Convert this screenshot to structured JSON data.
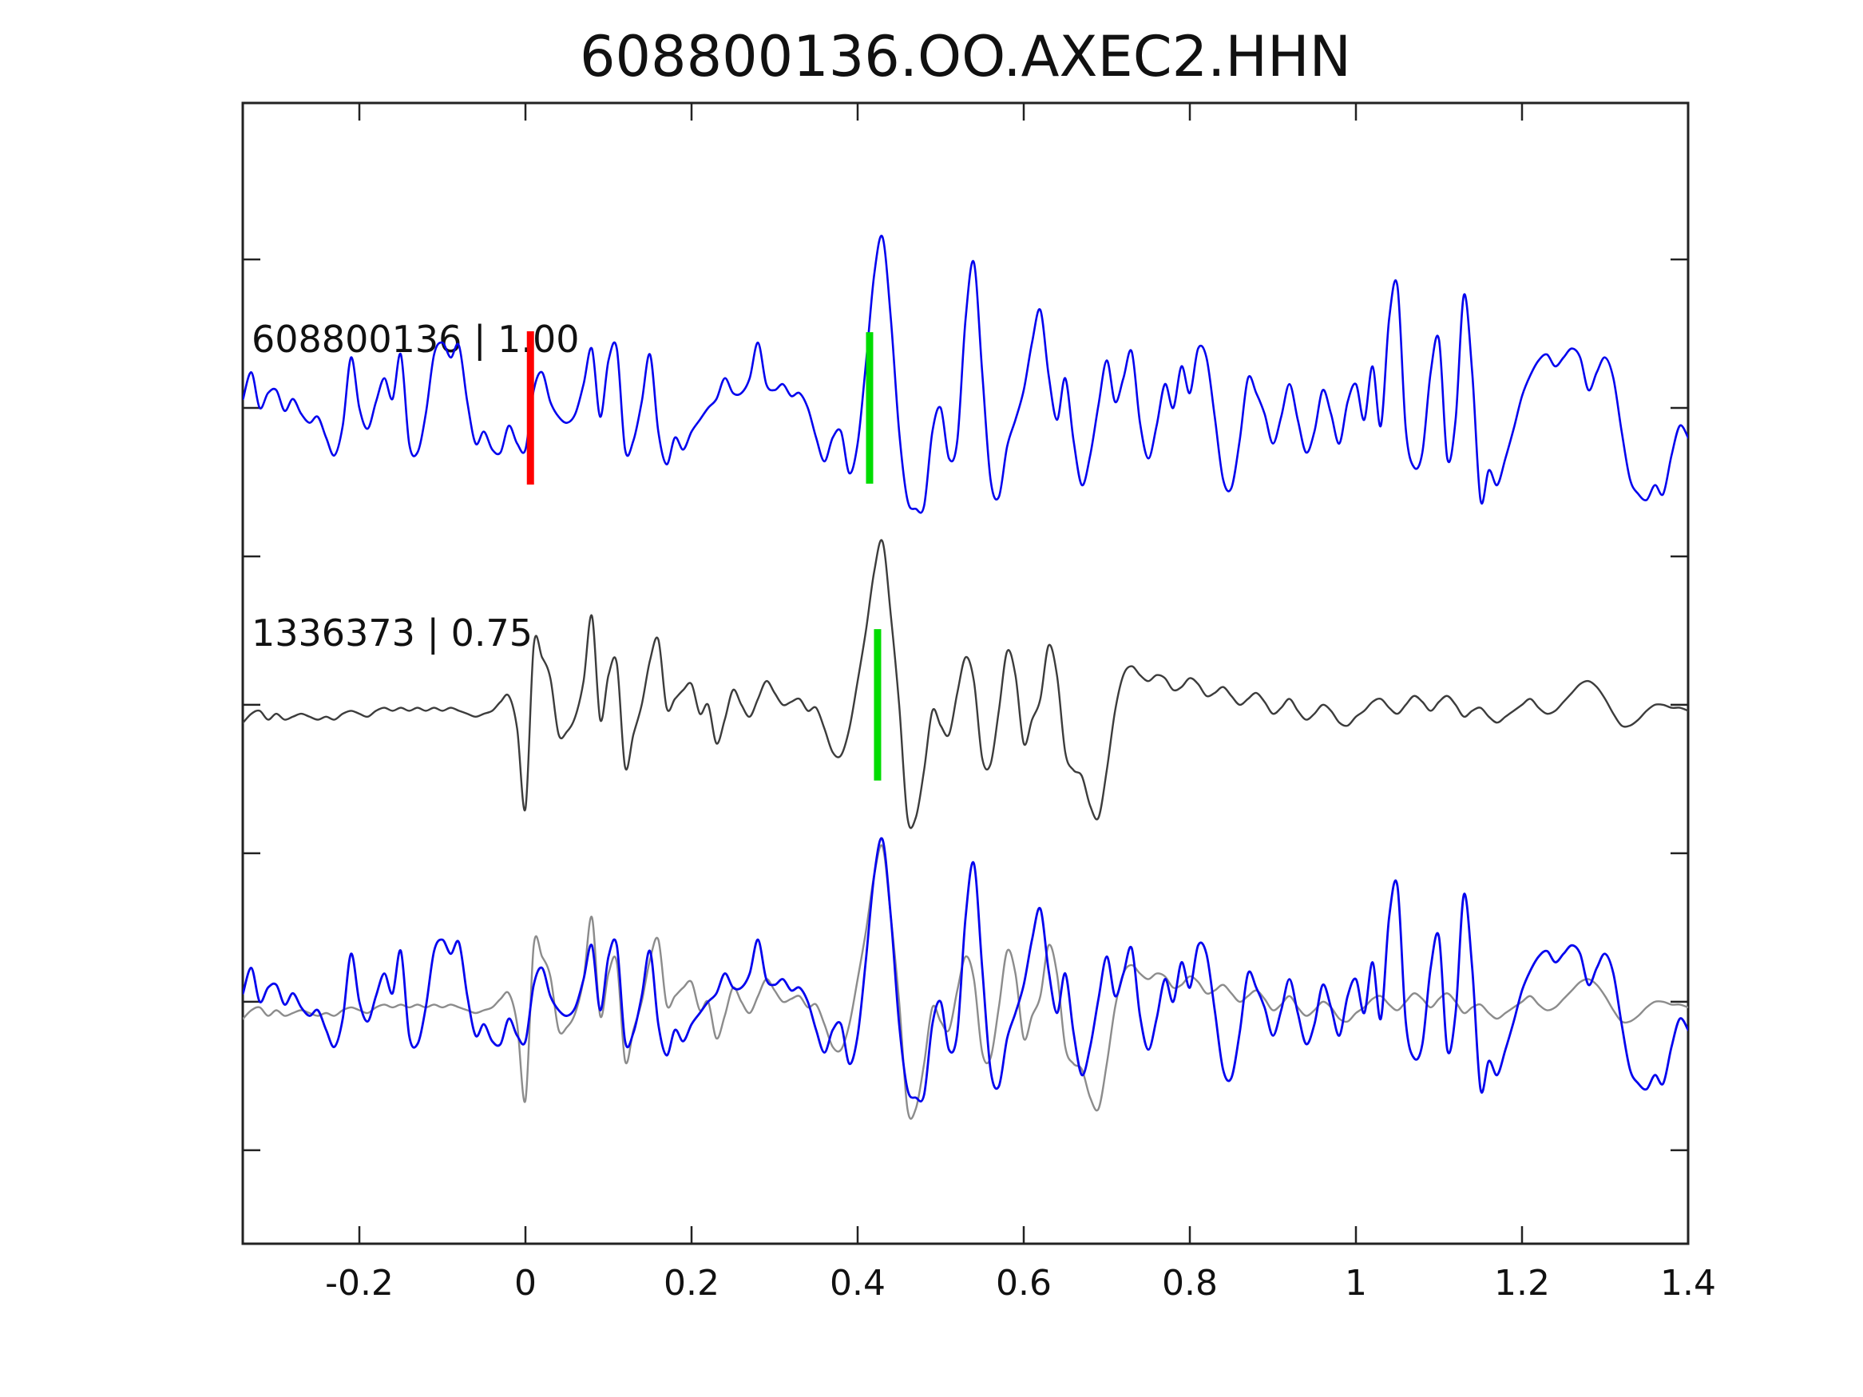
{
  "title": "608800136.OO.AXEC2.HHN",
  "labels": {
    "trace1": "608800136 | 1.00",
    "trace2": "1336373 | 0.75"
  },
  "colors": {
    "background": "#ffffff",
    "axis": "#222222",
    "text": "#111111",
    "trace_blue": "#0404ee",
    "trace_dark_gray": "#3c3c3c",
    "trace_light_gray": "#8c8c8c",
    "pick_red": "#ff0000",
    "pick_green": "#00dc00"
  },
  "chart_data": {
    "type": "line",
    "title": "608800136.OO.AXEC2.HHN",
    "grid": false,
    "legend": "none",
    "x_axis": {
      "range": [
        -0.3404,
        1.4
      ],
      "ticks": [
        -0.2,
        0,
        0.2,
        0.4,
        0.6,
        0.8,
        1,
        1.2,
        1.4
      ],
      "tick_labels": [
        "-0.2",
        "0",
        "0.2",
        "0.4",
        "0.6",
        "0.8",
        "1",
        "1.2",
        "1.4"
      ],
      "ticks_on": [
        "bottom",
        "top"
      ],
      "tick_direction": "in"
    },
    "y_axis": {
      "range": [
        -0.815,
        3.027
      ],
      "ticks": [
        -0.5,
        0,
        0.5,
        1,
        1.5,
        2,
        2.5
      ],
      "tick_labels": [],
      "ticks_on": [
        "left",
        "right"
      ],
      "tick_direction": "in"
    },
    "annotations": [
      {
        "text": "608800136 | 1.00",
        "x": -0.33,
        "y": 2.35
      },
      {
        "text": "1336373 | 0.75",
        "x": -0.33,
        "y": 1.35
      }
    ],
    "series": [
      {
        "name": "1336373",
        "color": "#3c3c3c",
        "width": 2.4,
        "offset": 1.0,
        "x0": -0.34,
        "dx": 0.01,
        "values": [
          -0.06,
          -0.03,
          -0.02,
          -0.05,
          -0.03,
          -0.05,
          -0.04,
          -0.03,
          -0.04,
          -0.05,
          -0.04,
          -0.05,
          -0.03,
          -0.02,
          -0.03,
          -0.04,
          -0.02,
          -0.01,
          -0.02,
          -0.01,
          -0.02,
          -0.01,
          -0.02,
          -0.01,
          -0.02,
          -0.01,
          -0.02,
          -0.03,
          -0.04,
          -0.03,
          -0.02,
          0.01,
          0.03,
          -0.08,
          -0.35,
          0.2,
          0.16,
          0.09,
          -0.1,
          -0.09,
          -0.04,
          0.08,
          0.3,
          -0.05,
          0.1,
          0.14,
          -0.21,
          -0.1,
          0.0,
          0.15,
          0.22,
          -0.01,
          0.02,
          0.05,
          0.07,
          -0.03,
          0.0,
          -0.13,
          -0.05,
          0.05,
          0.0,
          -0.04,
          0.02,
          0.08,
          0.04,
          0.0,
          0.01,
          0.02,
          -0.02,
          -0.01,
          -0.08,
          -0.16,
          -0.17,
          -0.08,
          0.08,
          0.25,
          0.45,
          0.55,
          0.3,
          0.0,
          -0.38,
          -0.38,
          -0.22,
          -0.02,
          -0.07,
          -0.1,
          0.04,
          0.16,
          0.08,
          -0.18,
          -0.2,
          -0.02,
          0.18,
          0.1,
          -0.13,
          -0.05,
          0.02,
          0.2,
          0.1,
          -0.16,
          -0.22,
          -0.24,
          -0.34,
          -0.38,
          -0.22,
          -0.02,
          0.1,
          0.13,
          0.1,
          0.08,
          0.1,
          0.09,
          0.05,
          0.06,
          0.09,
          0.07,
          0.03,
          0.04,
          0.06,
          0.03,
          0.0,
          0.02,
          0.04,
          0.01,
          -0.03,
          -0.01,
          0.02,
          -0.02,
          -0.05,
          -0.03,
          0.0,
          -0.02,
          -0.06,
          -0.07,
          -0.04,
          -0.02,
          0.01,
          0.02,
          -0.01,
          -0.03,
          0.0,
          0.03,
          0.01,
          -0.02,
          0.01,
          0.03,
          0.0,
          -0.04,
          -0.02,
          -0.01,
          -0.04,
          -0.06,
          -0.04,
          -0.02,
          0.0,
          0.02,
          -0.01,
          -0.03,
          -0.02,
          0.01,
          0.04,
          0.07,
          0.08,
          0.06,
          0.02,
          -0.03,
          -0.07,
          -0.07,
          -0.05,
          -0.02,
          0.0,
          0.0,
          -0.01,
          -0.01,
          -0.02
        ]
      },
      {
        "name": "overlay-1336373",
        "color": "#8c8c8c",
        "width": 2.4,
        "offset": 0.0,
        "source": "1336373",
        "scale": 0.95
      },
      {
        "name": "608800136",
        "color": "#0404ee",
        "width": 2.6,
        "offset": 2.0,
        "x0": -0.34,
        "dx": 0.01,
        "values": [
          0.03,
          0.12,
          0.0,
          0.05,
          0.06,
          -0.01,
          0.03,
          -0.02,
          -0.05,
          -0.03,
          -0.1,
          -0.16,
          -0.06,
          0.17,
          0.0,
          -0.07,
          0.02,
          0.1,
          0.03,
          0.18,
          -0.12,
          -0.15,
          -0.02,
          0.18,
          0.22,
          0.17,
          0.21,
          0.02,
          -0.12,
          -0.08,
          -0.14,
          -0.15,
          -0.06,
          -0.12,
          -0.14,
          0.06,
          0.12,
          0.02,
          -0.03,
          -0.05,
          -0.02,
          0.08,
          0.2,
          -0.03,
          0.16,
          0.2,
          -0.14,
          -0.11,
          0.02,
          0.18,
          -0.08,
          -0.19,
          -0.1,
          -0.14,
          -0.08,
          -0.04,
          0.0,
          0.03,
          0.1,
          0.05,
          0.05,
          0.1,
          0.22,
          0.08,
          0.06,
          0.08,
          0.04,
          0.05,
          0.0,
          -0.1,
          -0.18,
          -0.1,
          -0.08,
          -0.22,
          -0.12,
          0.15,
          0.45,
          0.575,
          0.3,
          -0.08,
          -0.31,
          -0.34,
          -0.33,
          -0.08,
          0.0,
          -0.17,
          -0.11,
          0.3,
          0.49,
          0.12,
          -0.24,
          -0.3,
          -0.13,
          -0.04,
          0.06,
          0.22,
          0.33,
          0.11,
          -0.04,
          0.1,
          -0.11,
          -0.26,
          -0.16,
          0.01,
          0.16,
          0.02,
          0.1,
          0.19,
          -0.05,
          -0.17,
          -0.06,
          0.08,
          0.0,
          0.14,
          0.05,
          0.2,
          0.17,
          -0.03,
          -0.24,
          -0.27,
          -0.11,
          0.1,
          0.05,
          -0.02,
          -0.12,
          -0.03,
          0.08,
          -0.04,
          -0.15,
          -0.08,
          0.06,
          -0.02,
          -0.12,
          0.02,
          0.08,
          -0.04,
          0.14,
          -0.06,
          0.3,
          0.41,
          -0.07,
          -0.2,
          -0.15,
          0.12,
          0.23,
          -0.17,
          -0.04,
          0.38,
          0.12,
          -0.31,
          -0.21,
          -0.26,
          -0.17,
          -0.07,
          0.04,
          0.11,
          0.16,
          0.18,
          0.14,
          0.17,
          0.2,
          0.17,
          0.06,
          0.12,
          0.17,
          0.1,
          -0.08,
          -0.24,
          -0.29,
          -0.31,
          -0.26,
          -0.29,
          -0.16,
          -0.06,
          -0.1
        ]
      },
      {
        "name": "overlay-608800136",
        "color": "#0404ee",
        "width": 2.8,
        "offset": 0.0,
        "source": "608800136",
        "scale": 0.95
      }
    ],
    "markers": [
      {
        "name": "origin-pick-marker",
        "color": "#ff0000",
        "x": 0.006,
        "y_center": 2.0,
        "y_half": 0.258,
        "width": 9
      },
      {
        "name": "template-pick-marker-top",
        "color": "#00dc00",
        "x": 0.4144,
        "y_center": 2.0,
        "y_half": 0.255,
        "width": 9
      },
      {
        "name": "template-pick-marker-middle",
        "color": "#00dc00",
        "x": 0.424,
        "y_center": 1.0,
        "y_half": 0.255,
        "width": 9
      }
    ]
  }
}
